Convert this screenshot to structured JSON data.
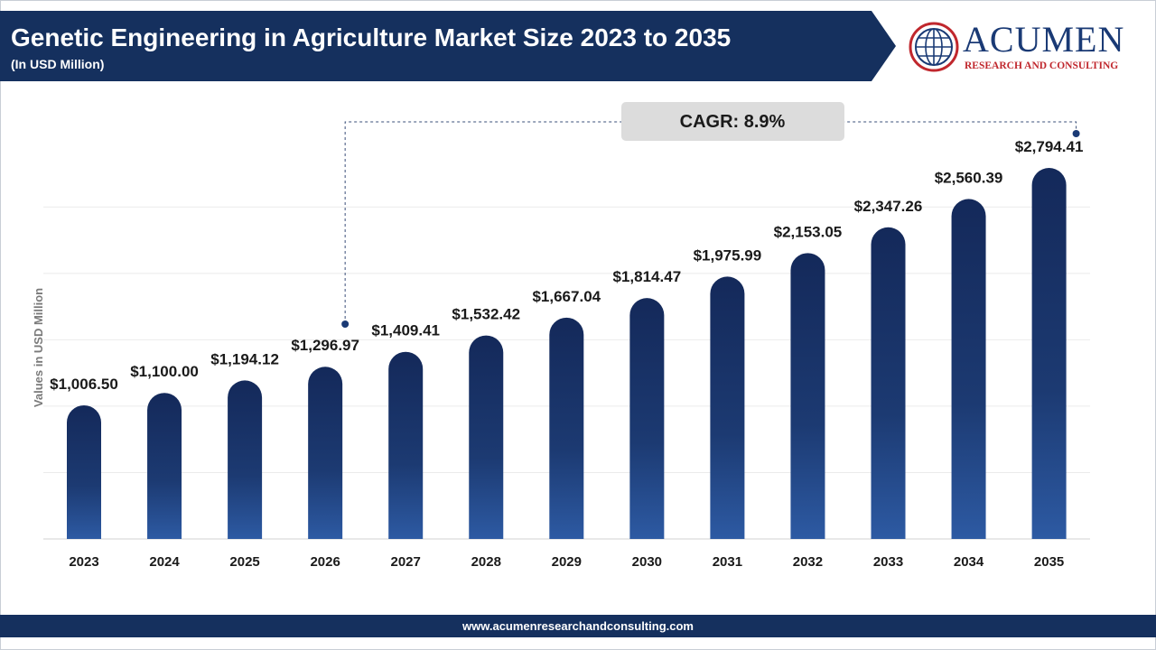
{
  "header": {
    "title": "Genetic Engineering in Agriculture Market Size 2023 to 2035",
    "subtitle": "(In USD Million)"
  },
  "logo": {
    "name": "ACUMEN",
    "tagline": "RESEARCH AND CONSULTING"
  },
  "footer": {
    "url": "www.acumenresearchandconsulting.com"
  },
  "colors": {
    "header_navy": "#15305e",
    "bar_top": "#14295a",
    "bar_bottom": "#2d5aa3",
    "cagr_box": "#dcdcdc",
    "logo_red": "#c0272d"
  },
  "chart_data": {
    "type": "bar",
    "categories": [
      "2023",
      "2024",
      "2025",
      "2026",
      "2027",
      "2028",
      "2029",
      "2030",
      "2031",
      "2032",
      "2033",
      "2034",
      "2035"
    ],
    "values": [
      1006.5,
      1100.0,
      1194.12,
      1296.97,
      1409.41,
      1532.42,
      1667.04,
      1814.47,
      1975.99,
      2153.05,
      2347.26,
      2560.39,
      2794.41
    ],
    "labels": [
      "$1,006.50",
      "$1,100.00",
      "$1,194.12",
      "$1,296.97",
      "$1,409.41",
      "$1,532.42",
      "$1,667.04",
      "$1,814.47",
      "$1,975.99",
      "$2,153.05",
      "$2,347.26",
      "$2,560.39",
      "$2,794.41"
    ],
    "ylabel": "Values in USD Million",
    "ylim": [
      0,
      3000
    ],
    "grid": true,
    "annotation": {
      "text": "CAGR: 8.9%",
      "from": "2026",
      "to": "2035"
    }
  }
}
